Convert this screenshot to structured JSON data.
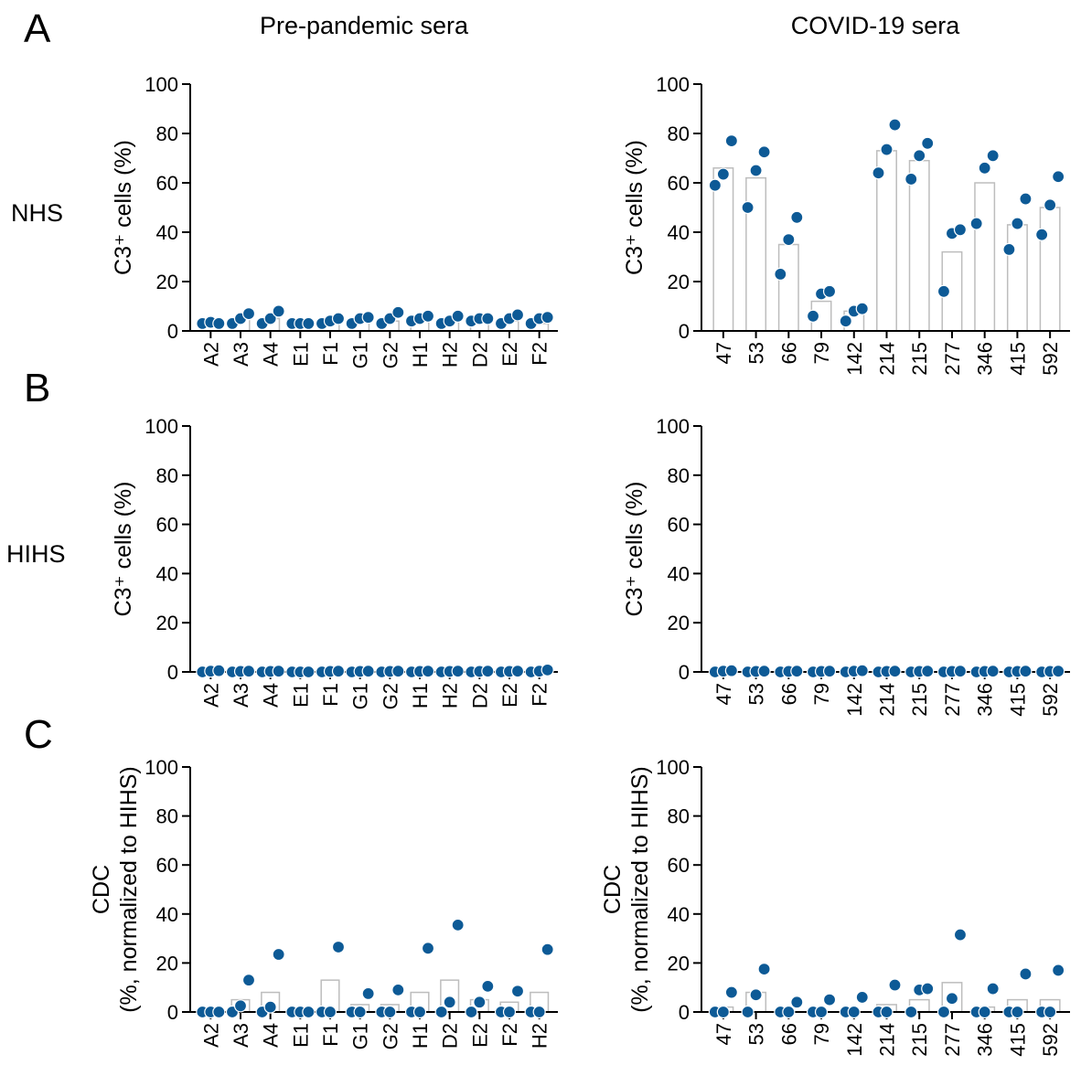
{
  "figure": {
    "panel_letters": [
      "A",
      "B",
      "C"
    ],
    "column_titles": [
      "Pre-pandemic sera",
      "COVID-19 sera"
    ],
    "row_labels": [
      "NHS",
      "HIHS",
      ""
    ],
    "dot_color": "#0d5a96",
    "bar_edge_color": "#bdbdbd"
  },
  "chart_data": [
    {
      "type": "bar",
      "panel": "A",
      "row_label": "NHS",
      "column_title": "Pre-pandemic sera",
      "ylabel": "C3⁺ cells (%)",
      "ylim": [
        0,
        100
      ],
      "yticks": [
        0,
        20,
        40,
        60,
        80,
        100
      ],
      "categories": [
        "A2",
        "A3",
        "A4",
        "E1",
        "F1",
        "G1",
        "G2",
        "H1",
        "H2",
        "D2",
        "E2",
        "F2"
      ],
      "bars": [
        3,
        5,
        5,
        3,
        3,
        4,
        4,
        4,
        4,
        4,
        4,
        3
      ],
      "points": [
        [
          3,
          3.5,
          3
        ],
        [
          3,
          5,
          7
        ],
        [
          3,
          5,
          8
        ],
        [
          3,
          3,
          3
        ],
        [
          3,
          4,
          5
        ],
        [
          3,
          5,
          5.5
        ],
        [
          3,
          5,
          7.5
        ],
        [
          4,
          5,
          6
        ],
        [
          3,
          4,
          6
        ],
        [
          4,
          5,
          5
        ],
        [
          3,
          5,
          6.5
        ],
        [
          3,
          5,
          5.5
        ]
      ]
    },
    {
      "type": "bar",
      "panel": "A",
      "row_label": "NHS",
      "column_title": "COVID-19 sera",
      "ylabel": "C3⁺ cells (%)",
      "ylim": [
        0,
        100
      ],
      "yticks": [
        0,
        20,
        40,
        60,
        80,
        100
      ],
      "categories": [
        "47",
        "53",
        "66",
        "79",
        "142",
        "214",
        "215",
        "277",
        "346",
        "415",
        "592"
      ],
      "bars": [
        66,
        62,
        35,
        12,
        8,
        73,
        69,
        32,
        60,
        43,
        50
      ],
      "points": [
        [
          59,
          63.5,
          77
        ],
        [
          50,
          65,
          72.5
        ],
        [
          23,
          37,
          46
        ],
        [
          6,
          15,
          16
        ],
        [
          4,
          8,
          9
        ],
        [
          64,
          73.5,
          83.5
        ],
        [
          61.5,
          71,
          76
        ],
        [
          16,
          39.5,
          41
        ],
        [
          43.5,
          66,
          71
        ],
        [
          33,
          43.5,
          53.5
        ],
        [
          39,
          51,
          62.5
        ]
      ]
    },
    {
      "type": "bar",
      "panel": "B",
      "row_label": "HIHS",
      "column_title": "Pre-pandemic sera",
      "ylabel": "C3⁺ cells (%)",
      "ylim": [
        0,
        100
      ],
      "yticks": [
        0,
        20,
        40,
        60,
        80,
        100
      ],
      "categories": [
        "A2",
        "A3",
        "A4",
        "E1",
        "F1",
        "G1",
        "G2",
        "H1",
        "H2",
        "D2",
        "E2",
        "F2"
      ],
      "bars": [
        0,
        0,
        0,
        0,
        0,
        0,
        0,
        0,
        0,
        0,
        0,
        0
      ],
      "points": [
        [
          0,
          0.3,
          0.5
        ],
        [
          0,
          0.2,
          0.3
        ],
        [
          0,
          0.2,
          0.3
        ],
        [
          0,
          0,
          0
        ],
        [
          0,
          0.2,
          0.3
        ],
        [
          0,
          0.2,
          0.3
        ],
        [
          0,
          0.2,
          0.3
        ],
        [
          0,
          0.2,
          0.3
        ],
        [
          0,
          0.2,
          0.3
        ],
        [
          0,
          0.2,
          0.3
        ],
        [
          0,
          0.2,
          0.3
        ],
        [
          0,
          0.3,
          0.8
        ]
      ]
    },
    {
      "type": "bar",
      "panel": "B",
      "row_label": "HIHS",
      "column_title": "COVID-19 sera",
      "ylabel": "C3⁺ cells (%)",
      "ylim": [
        0,
        100
      ],
      "yticks": [
        0,
        20,
        40,
        60,
        80,
        100
      ],
      "categories": [
        "47",
        "53",
        "66",
        "79",
        "142",
        "214",
        "215",
        "277",
        "346",
        "415",
        "592"
      ],
      "bars": [
        0,
        0,
        0,
        0,
        0,
        0,
        0,
        0,
        0,
        0,
        0
      ],
      "points": [
        [
          0,
          0.3,
          0.5
        ],
        [
          0,
          0.2,
          0.3
        ],
        [
          0,
          0.2,
          0.3
        ],
        [
          0,
          0.2,
          0.3
        ],
        [
          0,
          0.3,
          0.5
        ],
        [
          0,
          0.2,
          0.3
        ],
        [
          0,
          0.2,
          0.3
        ],
        [
          0,
          0.2,
          0.3
        ],
        [
          0,
          0.2,
          0.3
        ],
        [
          0,
          0.2,
          0.3
        ],
        [
          0,
          0.2,
          0.3
        ]
      ]
    },
    {
      "type": "bar",
      "panel": "C",
      "row_label": "",
      "column_title": "Pre-pandemic sera",
      "ylabel": "CDC (%, normalized to HIHS)",
      "ylim": [
        0,
        100
      ],
      "yticks": [
        0,
        20,
        40,
        60,
        80,
        100
      ],
      "categories": [
        "A2",
        "A3",
        "A4",
        "E1",
        "F1",
        "G1",
        "G2",
        "H1",
        "D2",
        "E2",
        "F2",
        "H2"
      ],
      "bars": [
        0,
        5,
        8,
        0,
        13,
        3,
        3,
        8,
        13,
        5,
        4,
        8
      ],
      "points": [
        [
          0,
          0,
          0
        ],
        [
          0,
          2.5,
          13
        ],
        [
          0,
          2,
          23.5
        ],
        [
          0,
          0,
          0
        ],
        [
          0,
          0,
          26.5
        ],
        [
          0,
          0,
          7.5
        ],
        [
          0,
          0,
          9
        ],
        [
          0,
          0,
          26
        ],
        [
          0,
          4,
          35.5
        ],
        [
          0,
          4,
          10.5
        ],
        [
          0,
          0,
          8.5
        ],
        [
          0,
          0,
          25.5
        ]
      ]
    },
    {
      "type": "bar",
      "panel": "C",
      "row_label": "",
      "column_title": "COVID-19 sera",
      "ylabel": "CDC (%, normalized to HIHS)",
      "ylim": [
        0,
        100
      ],
      "yticks": [
        0,
        20,
        40,
        60,
        80,
        100
      ],
      "categories": [
        "47",
        "53",
        "66",
        "79",
        "142",
        "214",
        "215",
        "277",
        "346",
        "415",
        "592"
      ],
      "bars": [
        2,
        8,
        0,
        0,
        0,
        3,
        5,
        12,
        2,
        5,
        5
      ],
      "points": [
        [
          0,
          0,
          8
        ],
        [
          0,
          7,
          17.5
        ],
        [
          0,
          0,
          4
        ],
        [
          0,
          0,
          5
        ],
        [
          0,
          0,
          6
        ],
        [
          0,
          0,
          11
        ],
        [
          0,
          9,
          9.5
        ],
        [
          0,
          5.5,
          31.5
        ],
        [
          0,
          0,
          9.5
        ],
        [
          0,
          0,
          15.5
        ],
        [
          0,
          0,
          17
        ]
      ]
    }
  ]
}
